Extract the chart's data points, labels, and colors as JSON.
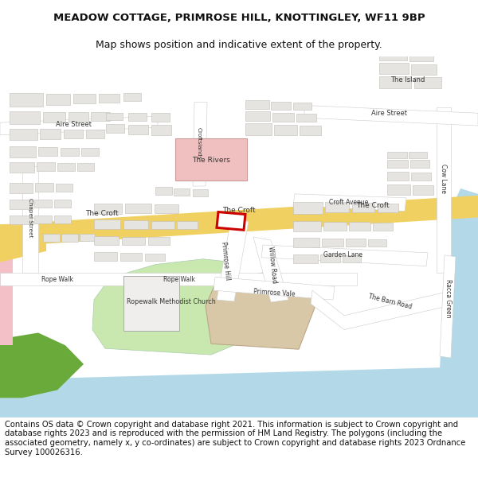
{
  "title_line1": "MEADOW COTTAGE, PRIMROSE HILL, KNOTTINGLEY, WF11 9BP",
  "title_line2": "Map shows position and indicative extent of the property.",
  "footer_text": "Contains OS data © Crown copyright and database right 2021. This information is subject to Crown copyright and database rights 2023 and is reproduced with the permission of HM Land Registry. The polygons (including the associated geometry, namely x, y co-ordinates) are subject to Crown copyright and database rights 2023 Ordnance Survey 100026316.",
  "bg_color": "#ffffff",
  "map_bg": "#f2efeb",
  "road_yellow": "#f0d060",
  "water": "#b3d9e8",
  "green_light": "#c9e8b0",
  "green_dark": "#6aaa3a",
  "pink": "#f0c0c0",
  "tan": "#d8c8a8",
  "bldg_fill": "#e6e4e0",
  "bldg_edge": "#c0beba",
  "road_fill": "#ffffff",
  "road_edge": "#cccccc",
  "red_highlight": "#cc0000",
  "title_fs": 9.5,
  "footer_fs": 7.2
}
